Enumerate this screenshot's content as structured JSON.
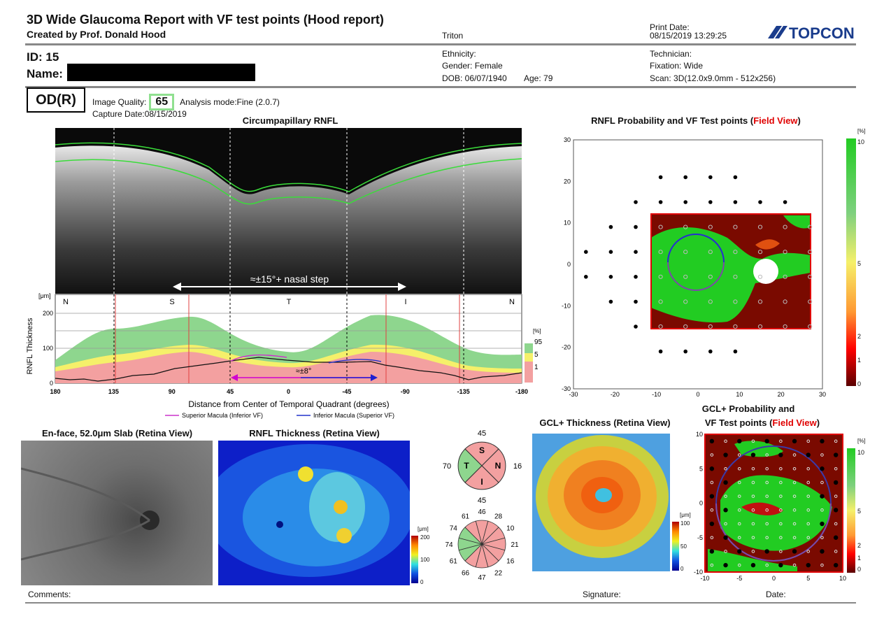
{
  "header": {
    "title": "3D Wide Glaucoma Report with VF test points (Hood report)",
    "creator": "Created by Prof. Donald Hood",
    "device": "Triton",
    "print_date_label": "Print Date:",
    "print_date": "08/15/2019 13:29:25",
    "brand": "TOPCON"
  },
  "patient": {
    "id_label": "ID: 15",
    "name_label": "Name:",
    "ethnicity": "Ethnicity:",
    "gender": "Gender: Female",
    "dob": "DOB: 06/07/1940",
    "age": "Age: 79",
    "technician": "Technician:",
    "fixation": "Fixation: Wide",
    "scan": "Scan: 3D(12.0x9.0mm - 512x256)"
  },
  "exam": {
    "eye": "OD(R)",
    "image_quality_label": "Image Quality:",
    "image_quality": "65",
    "analysis_mode": "Analysis mode:Fine (2.0.7)",
    "capture_date": "Capture Date:08/15/2019"
  },
  "circumpapillary": {
    "title": "Circumpapillary RNFL",
    "annotation_top": "≈±15°+ nasal step",
    "annotation_bottom": "≈±8°",
    "y_unit": "[μm]",
    "y_label": "RNFL Thickness",
    "quadrants": [
      "N",
      "S",
      "T",
      "I",
      "N"
    ],
    "y_ticks": [
      "200",
      "100",
      "0"
    ],
    "x_ticks": [
      "180",
      "135",
      "90",
      "45",
      "0",
      "-45",
      "-90",
      "-135",
      "-180"
    ],
    "x_label": "Distance from Center of Temporal Quadrant (degrees)",
    "legend_sup": "Superior Macula (Inferior VF)",
    "legend_inf": "Inferior Macula (Superior VF)",
    "pct_unit": "[%]",
    "pct_ticks": [
      "95",
      "5",
      "1"
    ]
  },
  "rnfl_prob": {
    "title_main": "RNFL Probability and VF Test points (",
    "title_red": "Field View",
    "title_end": ")",
    "y_ticks": [
      "30",
      "20",
      "10",
      "0",
      "-10",
      "-20",
      "-30"
    ],
    "x_ticks": [
      "-30",
      "-20",
      "-10",
      "0",
      "10",
      "20",
      "30"
    ],
    "scale_unit": "[%]",
    "scale_ticks": [
      "10",
      "5",
      "2",
      "1",
      "0"
    ]
  },
  "bottom": {
    "enface_title": "En-face, 52.0μm Slab (Retina View)",
    "rnfl_thick_title": "RNFL Thickness (Retina View)",
    "rnfl_scale_unit": "[μm]",
    "rnfl_scale_ticks": [
      "200",
      "100",
      "0"
    ],
    "quadrant_values": {
      "top": "45",
      "left": "70",
      "right": "16",
      "bottom": "45"
    },
    "quadrant_labels": {
      "s": "S",
      "t": "T",
      "n": "N",
      "i": "I"
    },
    "clock_values": [
      "46",
      "28",
      "10",
      "21",
      "16",
      "22",
      "47",
      "66",
      "61",
      "74",
      "74",
      "61"
    ],
    "gcl_title": "GCL+ Thickness (Retina View)",
    "gcl_scale_unit": "[μm]",
    "gcl_scale_ticks": [
      "100",
      "50",
      "0"
    ],
    "gcl_prob_title1": "GCL+ Probability and",
    "gcl_prob_title2": "VF Test points (",
    "gcl_prob_title_red": "Field View",
    "gcl_prob_title_end": ")",
    "gcl_prob_y_ticks": [
      "10",
      "5",
      "0",
      "-5",
      "-10"
    ],
    "gcl_prob_x_ticks": [
      "-10",
      "-5",
      "0",
      "5",
      "10"
    ],
    "gcl_prob_scale_unit": "[%]",
    "gcl_prob_scale_ticks": [
      "10",
      "5",
      "2",
      "1",
      "0"
    ]
  },
  "footer": {
    "comments": "Comments:",
    "signature": "Signature:",
    "date": "Date:"
  }
}
